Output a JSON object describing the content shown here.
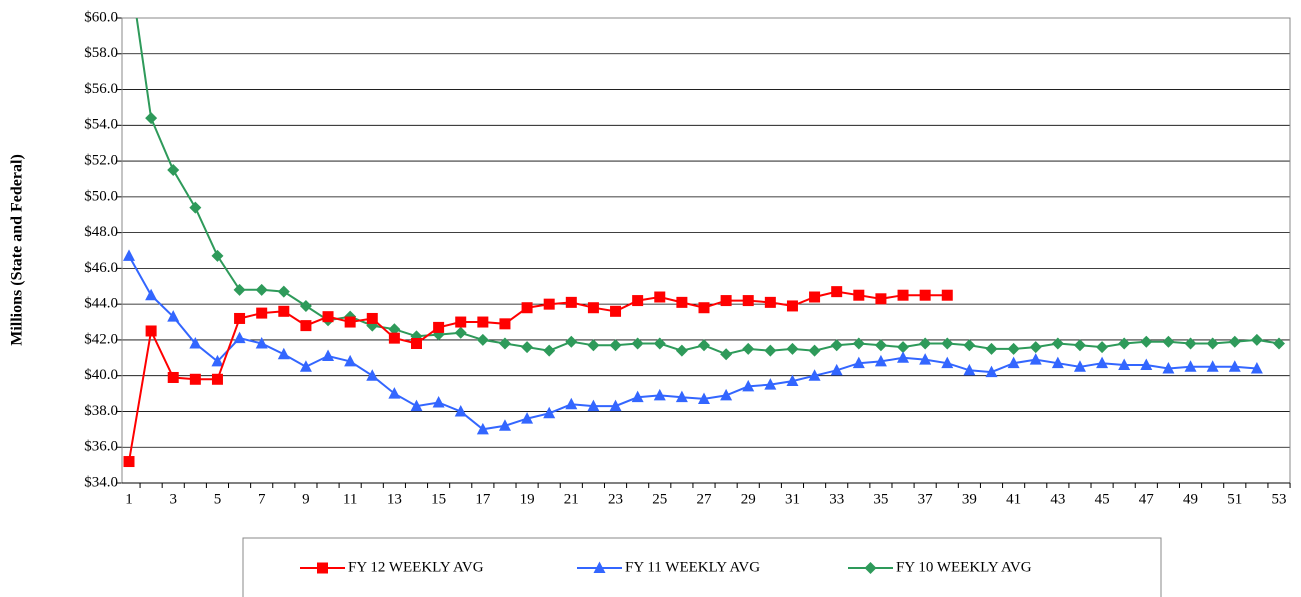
{
  "chart_data": {
    "type": "line",
    "y_label": "Millions (State and Federal)",
    "categories": [
      1,
      null,
      3,
      null,
      5,
      null,
      7,
      null,
      9,
      null,
      11,
      null,
      13,
      null,
      15,
      null,
      17,
      null,
      19,
      null,
      21,
      null,
      23,
      null,
      25,
      null,
      27,
      null,
      29,
      null,
      31,
      null,
      33,
      null,
      35,
      null,
      37,
      null,
      39,
      null,
      41,
      null,
      43,
      null,
      45,
      null,
      47,
      null,
      49,
      null,
      51,
      null,
      53
    ],
    "ylim": [
      34,
      60
    ],
    "yticks": [
      {
        "value": 34,
        "label": "$34.0"
      },
      {
        "value": 36,
        "label": "$36.0"
      },
      {
        "value": 38,
        "label": "$38.0"
      },
      {
        "value": 40,
        "label": "$40.0"
      },
      {
        "value": 42,
        "label": "$42.0"
      },
      {
        "value": 44,
        "label": "$44.0"
      },
      {
        "value": 46,
        "label": "$46.0"
      },
      {
        "value": 48,
        "label": "$48.0"
      },
      {
        "value": 50,
        "label": "$50.0"
      },
      {
        "value": 52,
        "label": "$52.0"
      },
      {
        "value": 54,
        "label": "$54.0"
      },
      {
        "value": 56,
        "label": "$56.0"
      },
      {
        "value": 58,
        "label": "$58.0"
      },
      {
        "value": 60,
        "label": "$60.0"
      }
    ],
    "grid": true,
    "legend": "bottom",
    "series": [
      {
        "name": "FY 12 WEEKLY AVG",
        "color": "#ff0000",
        "marker": "square",
        "values": [
          35.2,
          42.5,
          39.9,
          39.8,
          39.8,
          43.2,
          43.5,
          43.6,
          42.8,
          43.3,
          43.0,
          43.2,
          42.1,
          41.8,
          42.7,
          43.0,
          43.0,
          42.9,
          43.8,
          44.0,
          44.1,
          43.8,
          43.6,
          44.2,
          44.4,
          44.1,
          43.8,
          44.2,
          44.2,
          44.1,
          43.9,
          44.4,
          44.7,
          44.5,
          44.3,
          44.5,
          44.5,
          44.5,
          null,
          null,
          null,
          null,
          null,
          null,
          null,
          null,
          null,
          null,
          null,
          null,
          null,
          null,
          null
        ]
      },
      {
        "name": "FY 11 WEEKLY AVG",
        "color": "#3366ff",
        "marker": "triangle",
        "values": [
          46.7,
          44.5,
          43.3,
          41.8,
          40.8,
          42.1,
          41.8,
          41.2,
          40.5,
          41.1,
          40.8,
          40.0,
          39.0,
          38.3,
          38.5,
          38.0,
          37.0,
          37.2,
          37.6,
          37.9,
          38.4,
          38.3,
          38.3,
          38.8,
          38.9,
          38.8,
          38.7,
          38.9,
          39.4,
          39.5,
          39.7,
          40.0,
          40.3,
          40.7,
          40.8,
          41.0,
          40.9,
          40.7,
          40.3,
          40.2,
          40.7,
          40.9,
          40.7,
          40.5,
          40.7,
          40.6,
          40.6,
          40.4,
          40.5,
          40.5,
          40.5,
          40.4,
          null
        ]
      },
      {
        "name": "FY 10 WEEKLY AVG",
        "color": "#2e9a5a",
        "marker": "diamond",
        "values": [
          63,
          54.4,
          51.5,
          49.4,
          46.7,
          44.8,
          44.8,
          44.7,
          43.9,
          43.1,
          43.3,
          42.8,
          42.6,
          42.2,
          42.3,
          42.4,
          42.0,
          41.8,
          41.6,
          41.4,
          41.9,
          41.7,
          41.7,
          41.8,
          41.8,
          41.4,
          41.7,
          41.2,
          41.5,
          41.4,
          41.5,
          41.4,
          41.7,
          41.8,
          41.7,
          41.6,
          41.8,
          41.8,
          41.7,
          41.5,
          41.5,
          41.6,
          41.8,
          41.7,
          41.6,
          41.8,
          41.9,
          41.9,
          41.8,
          41.8,
          41.9,
          42.0,
          41.8
        ]
      }
    ]
  }
}
